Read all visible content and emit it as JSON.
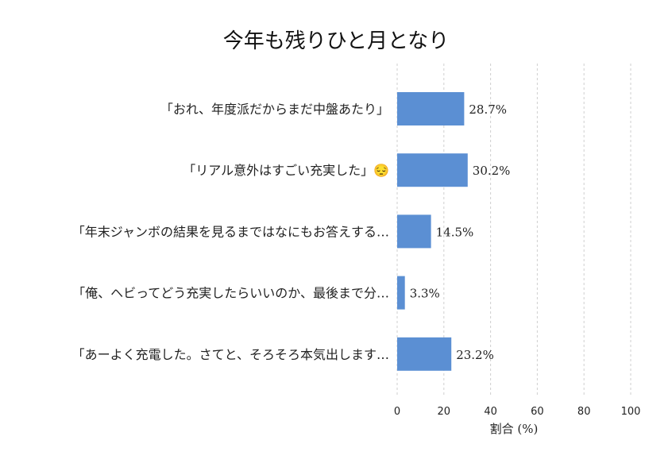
{
  "chart_data": {
    "type": "bar",
    "orientation": "horizontal",
    "title": "今年も残りひと月となり",
    "categories": [
      "「おれ、年度派だからまだ中盤あたり」",
      "「リアル意外はすごい充実した」😔",
      "「年末ジャンボの結果を見るまではなにもお答えする…",
      "「俺、ヘビってどう充実したらいいのか、最後まで分…",
      "「あーよく充電した。さてと、そろそろ本気出します…"
    ],
    "values": [
      28.7,
      30.2,
      14.5,
      3.3,
      23.2
    ],
    "value_labels": [
      "28.7%",
      "30.2%",
      "14.5%",
      "3.3%",
      "23.2%"
    ],
    "xlabel": "割合 (%)",
    "ylabel": "",
    "xlim": [
      0,
      100
    ],
    "xticks": [
      0,
      20,
      40,
      60,
      80,
      100
    ],
    "grid": true,
    "bar_color": "#5b8fd3"
  }
}
